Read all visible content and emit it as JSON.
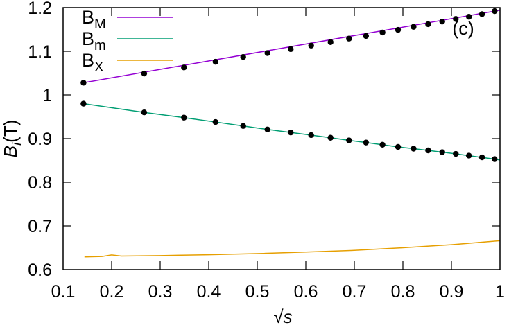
{
  "chart_data": {
    "type": "line",
    "title": "",
    "panel_label": "(c)",
    "xlabel": "√s",
    "ylabel": {
      "base": "B",
      "sub": "i",
      "unit": "(T)"
    },
    "xlim": [
      0.1,
      1.0
    ],
    "ylim": [
      0.6,
      1.2
    ],
    "grid": false,
    "legend_position": "top-left",
    "xticks": [
      "0.1",
      "0.2",
      "0.3",
      "0.4",
      "0.5",
      "0.6",
      "0.7",
      "0.8",
      "0.9",
      "1"
    ],
    "yticks": [
      "0.6",
      "0.7",
      "0.8",
      "0.9",
      "1",
      "1.1",
      "1.2"
    ],
    "points_x": [
      0.142,
      0.267,
      0.349,
      0.414,
      0.471,
      0.521,
      0.569,
      0.611,
      0.651,
      0.689,
      0.724,
      0.758,
      0.79,
      0.822,
      0.852,
      0.881,
      0.909,
      0.936,
      0.963,
      0.989
    ],
    "series": [
      {
        "name": "B",
        "name_sub": "M",
        "color": "#9400d3",
        "line": [
          [
            0.142,
            1.028
          ],
          [
            1.0,
            1.194
          ]
        ],
        "points_y": [
          1.028,
          1.049,
          1.063,
          1.076,
          1.087,
          1.096,
          1.105,
          1.113,
          1.121,
          1.129,
          1.135,
          1.143,
          1.149,
          1.156,
          1.162,
          1.168,
          1.174,
          1.179,
          1.185,
          1.192
        ]
      },
      {
        "name": "B",
        "name_sub": "m",
        "color": "#009e73",
        "line": [
          [
            0.142,
            0.98
          ],
          [
            0.267,
            0.96
          ],
          [
            0.349,
            0.948
          ],
          [
            0.414,
            0.938
          ],
          [
            0.471,
            0.929
          ],
          [
            0.521,
            0.921
          ],
          [
            0.569,
            0.914
          ],
          [
            0.611,
            0.908
          ],
          [
            0.651,
            0.902
          ],
          [
            0.689,
            0.896
          ],
          [
            0.724,
            0.891
          ],
          [
            0.758,
            0.886
          ],
          [
            0.79,
            0.881
          ],
          [
            0.822,
            0.877
          ],
          [
            0.852,
            0.873
          ],
          [
            0.881,
            0.869
          ],
          [
            0.909,
            0.865
          ],
          [
            0.936,
            0.861
          ],
          [
            0.963,
            0.857
          ],
          [
            0.989,
            0.853
          ],
          [
            1.0,
            0.851
          ]
        ],
        "points_y": [
          0.98,
          0.96,
          0.948,
          0.938,
          0.929,
          0.921,
          0.914,
          0.908,
          0.902,
          0.896,
          0.891,
          0.886,
          0.881,
          0.877,
          0.873,
          0.869,
          0.865,
          0.861,
          0.857,
          0.853
        ]
      },
      {
        "name": "B",
        "name_sub": "X",
        "color": "#e69f00",
        "line": [
          [
            0.144,
            0.629
          ],
          [
            0.18,
            0.63
          ],
          [
            0.2,
            0.6335
          ],
          [
            0.22,
            0.631
          ],
          [
            0.3,
            0.632
          ],
          [
            0.4,
            0.634
          ],
          [
            0.513,
            0.637
          ],
          [
            0.6,
            0.64
          ],
          [
            0.7,
            0.644
          ],
          [
            0.8,
            0.65
          ],
          [
            0.9,
            0.657
          ],
          [
            1.0,
            0.666
          ]
        ],
        "points_y": []
      }
    ]
  }
}
